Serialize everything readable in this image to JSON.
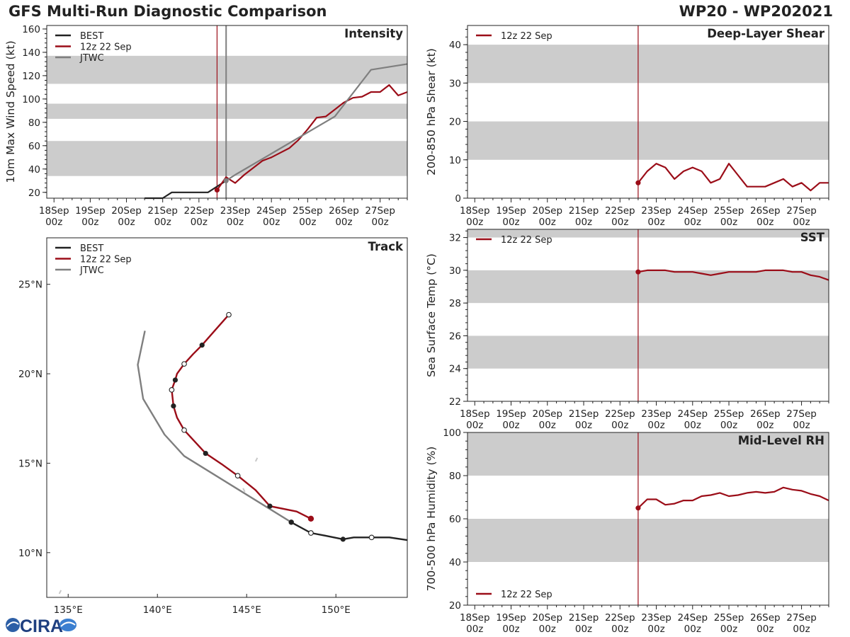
{
  "header": {
    "title": "GFS Multi-Run Diagnostic Comparison",
    "storm_id": "WP20 - WP202021"
  },
  "logo": {
    "text": "CIRA"
  },
  "colors": {
    "best": "#222222",
    "run": "#9b0d18",
    "jtwc": "#7f7f7f",
    "band": "#cccccc"
  },
  "chart_data": [
    {
      "id": "intensity",
      "type": "line",
      "title": "Intensity",
      "ylabel": "10m Max Wind Speed (kt)",
      "ylim": [
        15,
        163
      ],
      "yticks": [
        20,
        40,
        60,
        80,
        100,
        120,
        140,
        160
      ],
      "xlim": [
        -0.2,
        9.75
      ],
      "xticks": [
        "18Sep\n00z",
        "19Sep\n00z",
        "20Sep\n00z",
        "21Sep\n00z",
        "22Sep\n00z",
        "23Sep\n00z",
        "24Sep\n00z",
        "25Sep\n00z",
        "26Sep\n00z",
        "27Sep\n00z"
      ],
      "bands": [
        [
          34,
          64
        ],
        [
          83,
          96
        ],
        [
          113,
          137
        ]
      ],
      "vlines": [
        {
          "x": 4.5,
          "series": "run"
        },
        {
          "x": 4.75,
          "series": "jtwc"
        }
      ],
      "legend": [
        "BEST",
        "12z 22 Sep",
        "JTWC"
      ],
      "series": [
        {
          "name": "BEST",
          "key": "best",
          "x": [
            2.5,
            3.0,
            3.25,
            4.0,
            4.25,
            4.5,
            4.75
          ],
          "y": [
            15,
            15,
            20,
            20,
            20,
            25,
            30
          ]
        },
        {
          "name": "12z 22 Sep",
          "key": "run",
          "x": [
            4.5,
            4.75,
            5.0,
            5.25,
            5.5,
            5.75,
            6.0,
            6.25,
            6.5,
            6.75,
            7.0,
            7.25,
            7.5,
            7.75,
            8.0,
            8.25,
            8.5,
            8.75,
            9.0,
            9.25,
            9.5,
            9.75
          ],
          "y": [
            22,
            33,
            28,
            35,
            41,
            47,
            50,
            54,
            58,
            65,
            74,
            84,
            85,
            91,
            97,
            101,
            102,
            106,
            106,
            112,
            103,
            106
          ],
          "markers": [
            0
          ]
        },
        {
          "name": "JTWC",
          "key": "jtwc",
          "x": [
            4.75,
            5.0,
            7.75,
            8.75,
            9.75
          ],
          "y": [
            30,
            35,
            85,
            125,
            130
          ],
          "markers": [
            0
          ]
        }
      ]
    },
    {
      "id": "shear",
      "type": "line",
      "title": "Deep-Layer Shear",
      "ylabel": "200-850 hPa Shear (kt)",
      "ylim": [
        0,
        45
      ],
      "yticks": [
        0,
        10,
        20,
        30,
        40
      ],
      "xlim": [
        -0.2,
        9.75
      ],
      "xticks": [
        "18Sep\n00z",
        "19Sep\n00z",
        "20Sep\n00z",
        "21Sep\n00z",
        "22Sep\n00z",
        "23Sep\n00z",
        "24Sep\n00z",
        "25Sep\n00z",
        "26Sep\n00z",
        "27Sep\n00z"
      ],
      "bands": [
        [
          10,
          20
        ],
        [
          30,
          40
        ]
      ],
      "vlines": [
        {
          "x": 4.5,
          "series": "run"
        }
      ],
      "legend": [
        "12z 22 Sep"
      ],
      "series": [
        {
          "name": "12z 22 Sep",
          "key": "run",
          "x": [
            4.5,
            4.75,
            5.0,
            5.25,
            5.5,
            5.75,
            6.0,
            6.25,
            6.5,
            6.75,
            7.0,
            7.25,
            7.5,
            7.75,
            8.0,
            8.25,
            8.5,
            8.75,
            9.0,
            9.25,
            9.5,
            9.75
          ],
          "y": [
            4,
            7,
            9,
            8,
            5,
            7,
            8,
            7,
            4,
            5,
            9,
            6,
            3,
            3,
            3,
            4,
            5,
            3,
            4,
            2,
            4,
            4
          ],
          "markers": [
            0
          ]
        }
      ]
    },
    {
      "id": "sst",
      "type": "line",
      "title": "SST",
      "ylabel": "Sea Surface Temp (°C)",
      "ylim": [
        22,
        32.5
      ],
      "yticks": [
        22,
        24,
        26,
        28,
        30,
        32
      ],
      "xlim": [
        -0.2,
        9.75
      ],
      "xticks": [
        "18Sep\n00z",
        "19Sep\n00z",
        "20Sep\n00z",
        "21Sep\n00z",
        "22Sep\n00z",
        "23Sep\n00z",
        "24Sep\n00z",
        "25Sep\n00z",
        "26Sep\n00z",
        "27Sep\n00z"
      ],
      "bands": [
        [
          24,
          26
        ],
        [
          28,
          30
        ],
        [
          32,
          34
        ]
      ],
      "vlines": [
        {
          "x": 4.5,
          "series": "run"
        }
      ],
      "legend": [
        "12z 22 Sep"
      ],
      "series": [
        {
          "name": "12z 22 Sep",
          "key": "run",
          "x": [
            4.5,
            4.75,
            5.0,
            5.25,
            5.5,
            5.75,
            6.0,
            6.25,
            6.5,
            6.75,
            7.0,
            7.25,
            7.5,
            7.75,
            8.0,
            8.25,
            8.5,
            8.75,
            9.0,
            9.25,
            9.5,
            9.75
          ],
          "y": [
            29.9,
            30.0,
            30.0,
            30.0,
            29.9,
            29.9,
            29.9,
            29.8,
            29.7,
            29.8,
            29.9,
            29.9,
            29.9,
            29.9,
            30.0,
            30.0,
            30.0,
            29.9,
            29.9,
            29.7,
            29.6,
            29.4
          ],
          "markers": [
            0
          ]
        }
      ]
    },
    {
      "id": "rh",
      "type": "line",
      "title": "Mid-Level RH",
      "ylabel": "700-500 hPa Humidity (%)",
      "ylim": [
        20,
        100
      ],
      "yticks": [
        20,
        40,
        60,
        80,
        100
      ],
      "xlim": [
        -0.2,
        9.75
      ],
      "xticks": [
        "18Sep\n00z",
        "19Sep\n00z",
        "20Sep\n00z",
        "21Sep\n00z",
        "22Sep\n00z",
        "23Sep\n00z",
        "24Sep\n00z",
        "25Sep\n00z",
        "26Sep\n00z",
        "27Sep\n00z"
      ],
      "bands": [
        [
          40,
          60
        ],
        [
          80,
          100
        ]
      ],
      "vlines": [
        {
          "x": 4.5,
          "series": "run"
        }
      ],
      "legend": [
        "12z 22 Sep"
      ],
      "series": [
        {
          "name": "12z 22 Sep",
          "key": "run",
          "x": [
            4.5,
            4.75,
            5.0,
            5.25,
            5.5,
            5.75,
            6.0,
            6.25,
            6.5,
            6.75,
            7.0,
            7.25,
            7.5,
            7.75,
            8.0,
            8.25,
            8.5,
            8.75,
            9.0,
            9.25,
            9.5,
            9.75
          ],
          "y": [
            65,
            69,
            69,
            66.5,
            67,
            68.5,
            68.5,
            70.5,
            71,
            72,
            70.5,
            71,
            72,
            72.5,
            72,
            72.5,
            74.5,
            73.5,
            73,
            71.5,
            70.5,
            68.5
          ],
          "markers": [
            0
          ]
        }
      ]
    },
    {
      "id": "track",
      "type": "line",
      "title": "Track",
      "xlim": [
        133.8,
        154.0
      ],
      "ylim": [
        7.5,
        27.6
      ],
      "xticks_deg": [
        135,
        140,
        145,
        150
      ],
      "xtick_labels": [
        "135°E",
        "140°E",
        "145°E",
        "150°E"
      ],
      "yticks_deg": [
        10,
        15,
        20,
        25
      ],
      "ytick_labels": [
        "10°N",
        "15°N",
        "20°N",
        "25°N"
      ],
      "legend": [
        "BEST",
        "12z 22 Sep",
        "JTWC"
      ],
      "series": [
        {
          "name": "BEST",
          "key": "best",
          "lon": [
            154.0,
            153.0,
            152.0,
            151.0,
            150.4,
            149.4,
            148.6,
            147.5
          ],
          "lat": [
            10.7,
            10.85,
            10.85,
            10.85,
            10.75,
            10.95,
            11.1,
            11.7
          ],
          "open": [
            2,
            6
          ],
          "filled": [
            4,
            7
          ]
        },
        {
          "name": "12z 22 Sep",
          "key": "run",
          "lon": [
            148.6,
            147.8,
            146.3,
            145.5,
            144.5,
            143.6,
            142.7,
            142.1,
            141.5,
            141.1,
            140.9,
            140.8,
            141.0,
            141.1,
            141.5,
            142.0,
            142.5,
            143.2,
            144.0
          ],
          "lat": [
            11.9,
            12.3,
            12.6,
            13.5,
            14.3,
            14.95,
            15.55,
            16.2,
            16.85,
            17.55,
            18.2,
            19.1,
            19.65,
            20.0,
            20.55,
            21.1,
            21.6,
            22.4,
            23.3
          ],
          "open": [
            4,
            8,
            11,
            14,
            18
          ],
          "filled": [
            0,
            2,
            6,
            10,
            12,
            16
          ]
        },
        {
          "name": "JTWC",
          "key": "jtwc",
          "lon": [
            147.5,
            141.5,
            140.4,
            139.2,
            138.9,
            139.3
          ],
          "lat": [
            11.7,
            15.4,
            16.6,
            18.6,
            20.5,
            22.4
          ]
        }
      ]
    }
  ]
}
